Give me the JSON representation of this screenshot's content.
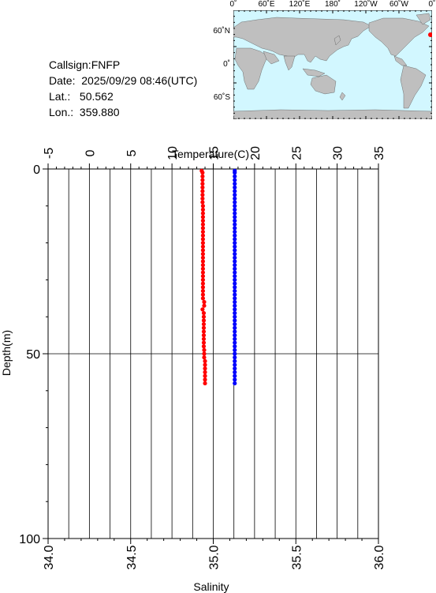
{
  "info": {
    "callsign": "Callsign:FNFP",
    "date": "Date:  2025/09/29 08:46(UTC)",
    "lat": "Lat.:   50.562",
    "lon": "Lon.:  359.880"
  },
  "map": {
    "top_labels": [
      "0˚",
      "60˚E",
      "120˚E",
      "180˚",
      "120˚W",
      "60˚W",
      "0˚"
    ],
    "left_labels": [
      "60˚N",
      "0˚",
      "60˚S"
    ],
    "ocean_color": "#d2f7ff",
    "land_color": "#bfbfbf",
    "marker_color": "#ff0000"
  },
  "chart_data": {
    "type": "scatter",
    "x_top_label": "Temperature(C)",
    "x_top_ticks": [
      "-5",
      "0",
      "5",
      "10",
      "15",
      "20",
      "25",
      "30",
      "35"
    ],
    "x_top_range": [
      -5,
      35
    ],
    "x_bottom_label": "Salinity",
    "x_bottom_ticks": [
      "34.0",
      "34.5",
      "35.0",
      "35.5",
      "36.0"
    ],
    "x_bottom_range": [
      34.0,
      36.0
    ],
    "y_label": "Depth(m)",
    "y_ticks": [
      "0",
      "50",
      "100"
    ],
    "y_range": [
      0,
      100
    ],
    "y_inverted": true,
    "grid": "vertical lines every 2.5 C; horizontal line at 50 m",
    "series": [
      {
        "color": "#ff0000",
        "axis": "top",
        "depth": [
          0.5,
          1,
          2,
          3,
          4,
          5,
          6,
          7,
          8,
          9,
          10,
          11,
          12,
          13,
          14,
          15,
          16,
          17,
          18,
          19,
          20,
          21,
          22,
          23,
          24,
          25,
          26,
          27,
          28,
          29,
          30,
          31,
          32,
          33,
          34,
          35,
          36,
          37,
          38,
          39,
          40,
          41,
          42,
          43,
          44,
          45,
          46,
          47,
          48,
          49,
          50,
          51,
          52,
          53,
          54,
          55,
          56,
          57,
          58
        ],
        "temperature": [
          13.6,
          13.7,
          13.7,
          13.7,
          13.7,
          13.7,
          13.7,
          13.7,
          13.7,
          13.7,
          13.75,
          13.75,
          13.75,
          13.75,
          13.75,
          13.75,
          13.75,
          13.75,
          13.75,
          13.75,
          13.75,
          13.75,
          13.75,
          13.75,
          13.75,
          13.75,
          13.75,
          13.75,
          13.75,
          13.75,
          13.75,
          13.75,
          13.75,
          13.75,
          13.75,
          13.75,
          13.9,
          13.9,
          13.7,
          13.85,
          13.85,
          13.85,
          13.85,
          13.85,
          13.85,
          13.85,
          13.85,
          13.85,
          13.85,
          13.9,
          13.9,
          13.9,
          14.0,
          14.0,
          14.0,
          14.0,
          14.0,
          14.0,
          14.0
        ]
      },
      {
        "color": "#0000ff",
        "axis": "bottom",
        "depth": [
          0.5,
          1,
          2,
          3,
          4,
          5,
          6,
          7,
          8,
          9,
          10,
          11,
          12,
          13,
          14,
          15,
          16,
          17,
          18,
          19,
          20,
          21,
          22,
          23,
          24,
          25,
          26,
          27,
          28,
          29,
          30,
          31,
          32,
          33,
          34,
          35,
          36,
          37,
          38,
          39,
          40,
          41,
          42,
          43,
          44,
          45,
          46,
          47,
          48,
          49,
          50,
          51,
          52,
          53,
          54,
          55,
          56,
          57,
          58
        ],
        "salinity": [
          35.13,
          35.13,
          35.13,
          35.13,
          35.13,
          35.13,
          35.13,
          35.13,
          35.13,
          35.13,
          35.13,
          35.13,
          35.13,
          35.13,
          35.13,
          35.13,
          35.13,
          35.13,
          35.13,
          35.13,
          35.13,
          35.13,
          35.13,
          35.13,
          35.13,
          35.13,
          35.13,
          35.13,
          35.13,
          35.13,
          35.13,
          35.13,
          35.13,
          35.13,
          35.13,
          35.13,
          35.13,
          35.13,
          35.13,
          35.13,
          35.13,
          35.13,
          35.13,
          35.13,
          35.13,
          35.13,
          35.13,
          35.13,
          35.13,
          35.13,
          35.13,
          35.13,
          35.13,
          35.13,
          35.13,
          35.13,
          35.13,
          35.13,
          35.13
        ]
      }
    ]
  }
}
